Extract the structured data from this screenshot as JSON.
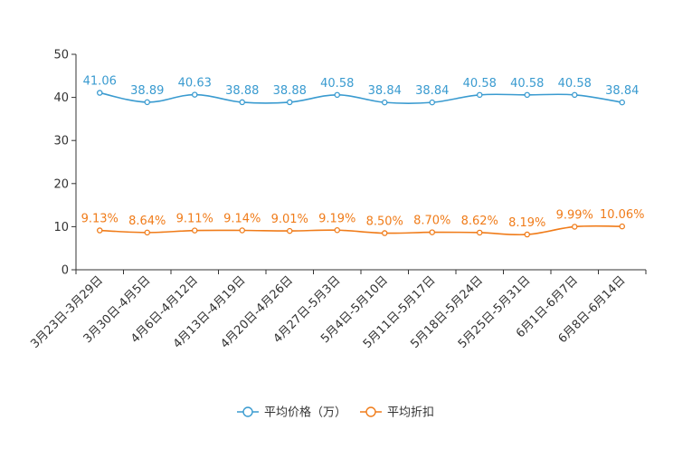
{
  "chart_data": {
    "type": "line",
    "title": "",
    "xlabel": "",
    "ylabel": "",
    "ylim": [
      0,
      50
    ],
    "yticks": [
      0,
      10,
      20,
      30,
      40,
      50
    ],
    "grid": false,
    "legend_position": "bottom-center",
    "categories": [
      "3月23日-3月29日",
      "3月30日-4月5日",
      "4月6日-4月12日",
      "4月13日-4月19日",
      "4月20日-4月26日",
      "4月27日-5月3日",
      "5月4日-5月10日",
      "5月11日-5月17日",
      "5月18日-5月24日",
      "5月25日-5月31日",
      "6月1日-6月7日",
      "6月8日-6月14日"
    ],
    "series": [
      {
        "name": "平均价格（万）",
        "color": "#3a9bd0",
        "values": [
          41.06,
          38.89,
          40.63,
          38.88,
          38.88,
          40.58,
          38.84,
          38.84,
          40.58,
          40.58,
          40.58,
          38.84
        ],
        "labels": [
          "41.06",
          "38.89",
          "40.63",
          "38.88",
          "38.88",
          "40.58",
          "38.84",
          "38.84",
          "40.58",
          "40.58",
          "40.58",
          "38.84"
        ]
      },
      {
        "name": "平均折扣",
        "color": "#f07c1a",
        "values": [
          9.13,
          8.64,
          9.11,
          9.14,
          9.01,
          9.19,
          8.5,
          8.7,
          8.62,
          8.19,
          9.99,
          10.06
        ],
        "labels": [
          "9.13%",
          "8.64%",
          "9.11%",
          "9.14%",
          "9.01%",
          "9.19%",
          "8.50%",
          "8.70%",
          "8.62%",
          "8.19%",
          "9.99%",
          "10.06%"
        ]
      }
    ]
  }
}
